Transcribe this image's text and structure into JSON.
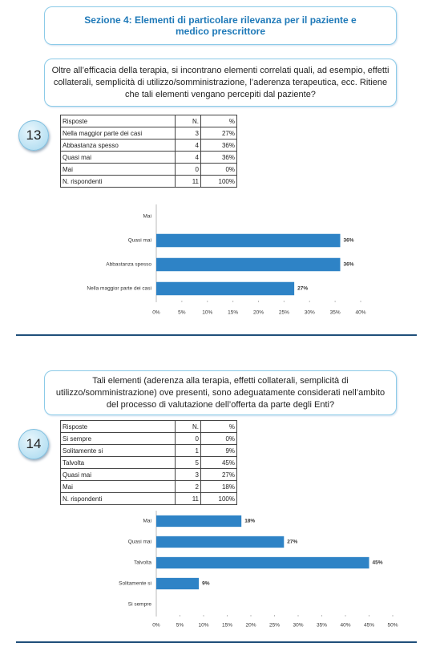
{
  "header": {
    "title": "Sezione 4: Elementi di particolare rilevanza per il paziente e medico prescrittore"
  },
  "questions": [
    {
      "number": 13,
      "text": "Oltre all’efficacia della terapia, si incontrano elementi correlati quali, ad esempio, effetti collaterali, semplicità di utilizzo/somministrazione, l’aderenza terapeutica, ecc. Ritiene che tali elementi vengano percepiti dal paziente?",
      "table": {
        "columns": [
          "Risposte",
          "N.",
          "%"
        ],
        "rows": [
          [
            "Nella maggior parte dei casi",
            3,
            "27%"
          ],
          [
            "Abbastanza spesso",
            4,
            "36%"
          ],
          [
            "Quasi mai",
            4,
            "36%"
          ],
          [
            "Mai",
            0,
            "0%"
          ],
          [
            "N. rispondenti",
            11,
            "100%"
          ]
        ]
      },
      "chart": {
        "type": "bar",
        "categories": [
          "Mai",
          "Quasi mai",
          "Abbastanza spesso",
          "Nella maggior parte dei casi"
        ],
        "values": [
          0,
          36,
          36,
          27
        ],
        "value_labels": [
          null,
          "36%",
          "36%",
          "27%"
        ],
        "color": "#2e83c6",
        "xlim": [
          0,
          40
        ],
        "xticks": [
          {
            "value": 0,
            "label": "0%"
          },
          {
            "value": 5,
            "label": "5%"
          },
          {
            "value": 10,
            "label": "10%"
          },
          {
            "value": 15,
            "label": "15%"
          },
          {
            "value": 20,
            "label": "20%"
          },
          {
            "value": 25,
            "label": "25%"
          },
          {
            "value": 30,
            "label": "30%"
          },
          {
            "value": 35,
            "label": "35%"
          },
          {
            "value": 40,
            "label": "40%"
          }
        ]
      }
    },
    {
      "number": 14,
      "text": "Tali elementi (aderenza alla terapia, effetti collaterali, semplicità di utilizzo/somministrazione) ove presenti, sono adeguatamente considerati nell’ambito del processo di valutazione dell’offerta da parte degli Enti?",
      "table": {
        "columns": [
          "Risposte",
          "N.",
          "%"
        ],
        "rows": [
          [
            "Si sempre",
            0,
            "0%"
          ],
          [
            "Solitamente si",
            1,
            "9%"
          ],
          [
            "Talvolta",
            5,
            "45%"
          ],
          [
            "Quasi mai",
            3,
            "27%"
          ],
          [
            "Mai",
            2,
            "18%"
          ],
          [
            "N. rispondenti",
            11,
            "100%"
          ]
        ]
      },
      "chart": {
        "type": "bar",
        "categories": [
          "Mai",
          "Quasi mai",
          "Talvolta",
          "Solitamente si",
          "Si sempre"
        ],
        "values": [
          18,
          27,
          45,
          9,
          0
        ],
        "value_labels": [
          "18%",
          "27%",
          "45%",
          "9%",
          null
        ],
        "color": "#2e83c6",
        "xlim": [
          0,
          50
        ],
        "xticks": [
          {
            "value": 0,
            "label": "0%"
          },
          {
            "value": 5,
            "label": "5%"
          },
          {
            "value": 10,
            "label": "10%"
          },
          {
            "value": 15,
            "label": "15%"
          },
          {
            "value": 20,
            "label": "20%"
          },
          {
            "value": 25,
            "label": "25%"
          },
          {
            "value": 30,
            "label": "30%"
          },
          {
            "value": 35,
            "label": "35%"
          },
          {
            "value": 40,
            "label": "40%"
          },
          {
            "value": 45,
            "label": "45%"
          },
          {
            "value": 50,
            "label": "50%"
          }
        ]
      }
    }
  ]
}
